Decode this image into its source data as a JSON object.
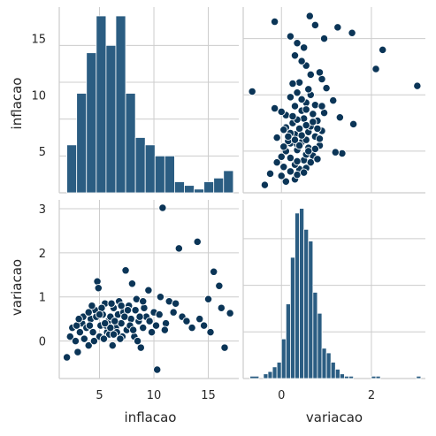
{
  "colors": {
    "bar": "#2b5d82",
    "bar_edge": "#ffffff",
    "point": "#0b3557",
    "point_edge": "#ffffff",
    "grid": "#cccccc",
    "text": "#262626"
  },
  "chart_data": {
    "type": "pairplot",
    "variables": [
      "inflacao",
      "variacao"
    ],
    "grid": true,
    "ranges": {
      "inflacao": [
        1.3,
        17.8
      ],
      "variacao": [
        -0.85,
        3.2
      ]
    },
    "ticks": {
      "inflacao": {
        "values": [
          5,
          10,
          15
        ],
        "labels": [
          "5",
          "10",
          "15"
        ]
      },
      "variacao": {
        "values": [
          0,
          1,
          2,
          3
        ],
        "labels": [
          "0",
          "1",
          "2",
          "3"
        ],
        "x_values": [
          0,
          2
        ],
        "x_labels": [
          "0",
          "2"
        ]
      }
    },
    "hist_inflacao": {
      "bin_edges": [
        2.0,
        2.9,
        3.8,
        4.7,
        5.6,
        6.5,
        7.4,
        8.3,
        9.2,
        10.1,
        11.0,
        11.9,
        12.8,
        13.7,
        14.6,
        15.5,
        16.4,
        17.3
      ],
      "counts": [
        13,
        27,
        38,
        48,
        40,
        48,
        27,
        15,
        13,
        10,
        10,
        3,
        2,
        1,
        3,
        4,
        6
      ]
    },
    "hist_variacao": {
      "bin_edges": [
        -0.7,
        -0.5,
        -0.4,
        -0.3,
        -0.2,
        -0.1,
        0.0,
        0.1,
        0.2,
        0.3,
        0.4,
        0.5,
        0.6,
        0.7,
        0.8,
        0.9,
        1.0,
        1.1,
        1.2,
        1.3,
        1.4,
        1.5,
        1.6,
        1.7,
        1.8,
        1.9,
        2.0,
        2.1,
        2.2,
        2.3,
        2.4,
        2.5,
        2.6,
        2.7,
        2.8,
        2.9,
        3.0,
        3.1
      ],
      "counts": [
        1,
        0,
        2,
        3,
        5,
        7,
        17,
        32,
        52,
        71,
        73,
        64,
        59,
        37,
        28,
        13,
        11,
        7,
        4,
        2,
        1,
        1,
        0,
        0,
        0,
        0,
        1,
        1,
        0,
        0,
        0,
        0,
        0,
        0,
        0,
        0,
        1
      ]
    },
    "points": [
      [
        2.0,
        -0.37
      ],
      [
        2.3,
        0.1
      ],
      [
        2.5,
        0.3
      ],
      [
        2.8,
        0.0
      ],
      [
        3.0,
        -0.25
      ],
      [
        3.2,
        0.2
      ],
      [
        3.4,
        0.4
      ],
      [
        3.6,
        0.05
      ],
      [
        3.8,
        0.3
      ],
      [
        4.0,
        -0.1
      ],
      [
        4.2,
        0.5
      ],
      [
        4.4,
        0.2
      ],
      [
        4.6,
        0.7
      ],
      [
        4.8,
        1.35
      ],
      [
        4.9,
        1.2
      ],
      [
        5.0,
        0.1
      ],
      [
        5.1,
        0.35
      ],
      [
        5.3,
        0.6
      ],
      [
        5.5,
        0.85
      ],
      [
        5.7,
        0.2
      ],
      [
        5.8,
        0.45
      ],
      [
        6.0,
        0.55
      ],
      [
        6.2,
        -0.1
      ],
      [
        6.3,
        0.75
      ],
      [
        6.5,
        0.3
      ],
      [
        6.7,
        0.6
      ],
      [
        6.8,
        0.9
      ],
      [
        7.0,
        0.4
      ],
      [
        7.2,
        0.65
      ],
      [
        7.4,
        1.6
      ],
      [
        7.5,
        0.25
      ],
      [
        7.7,
        0.8
      ],
      [
        7.9,
        0.5
      ],
      [
        8.0,
        1.3
      ],
      [
        8.2,
        0.1
      ],
      [
        8.3,
        0.7
      ],
      [
        8.6,
        0.45
      ],
      [
        8.8,
        -0.15
      ],
      [
        9.0,
        0.3
      ],
      [
        9.3,
        0.55
      ],
      [
        9.5,
        1.15
      ],
      [
        9.8,
        0.2
      ],
      [
        10.0,
        0.65
      ],
      [
        10.3,
        -0.65
      ],
      [
        10.6,
        1.0
      ],
      [
        10.8,
        3.02
      ],
      [
        11.1,
        0.4
      ],
      [
        11.4,
        0.9
      ],
      [
        11.8,
        0.65
      ],
      [
        12.3,
        2.1
      ],
      [
        12.6,
        0.55
      ],
      [
        13.5,
        0.3
      ],
      [
        14.0,
        2.25
      ],
      [
        14.6,
        0.35
      ],
      [
        15.2,
        0.2
      ],
      [
        15.5,
        1.57
      ],
      [
        16.0,
        1.25
      ],
      [
        16.5,
        -0.15
      ],
      [
        17.0,
        0.63
      ],
      [
        2.9,
        0.35
      ],
      [
        3.5,
        0.55
      ],
      [
        4.1,
        0.35
      ],
      [
        4.5,
        0.0
      ],
      [
        5.2,
        0.75
      ],
      [
        5.9,
        0.15
      ],
      [
        6.4,
        0.45
      ],
      [
        7.1,
        0.1
      ],
      [
        7.8,
        0.35
      ],
      [
        8.4,
        0.95
      ],
      [
        6.6,
        0.2
      ],
      [
        5.4,
        0.05
      ],
      [
        4.7,
        0.55
      ],
      [
        6.1,
        0.85
      ],
      [
        7.3,
        0.55
      ],
      [
        8.1,
        0.25
      ],
      [
        9.1,
        0.75
      ],
      [
        10.2,
        0.35
      ],
      [
        5.6,
        0.35
      ],
      [
        6.9,
        0.05
      ],
      [
        3.1,
        0.5
      ],
      [
        4.3,
        0.8
      ],
      [
        5.0,
        0.6
      ],
      [
        6.0,
        0.3
      ],
      [
        7.6,
        0.7
      ],
      [
        8.7,
        0.55
      ],
      [
        9.6,
        0.45
      ],
      [
        10.5,
        0.6
      ],
      [
        12.0,
        0.85
      ],
      [
        13.0,
        0.45
      ],
      [
        14.2,
        0.5
      ],
      [
        15.0,
        0.95
      ],
      [
        4.0,
        0.65
      ],
      [
        5.5,
        0.4
      ],
      [
        6.3,
        0.15
      ],
      [
        7.0,
        0.8
      ],
      [
        8.5,
        0.0
      ],
      [
        9.0,
        0.9
      ],
      [
        11.0,
        0.25
      ],
      [
        16.2,
        0.75
      ]
    ]
  }
}
